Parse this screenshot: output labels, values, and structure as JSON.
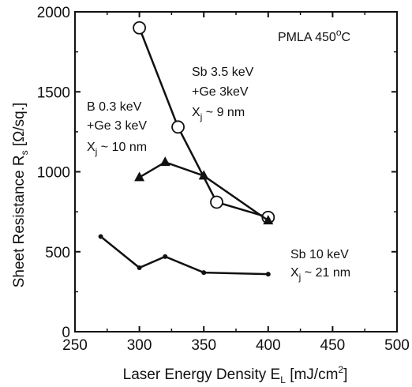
{
  "chart_data": {
    "type": "line",
    "xlabel": "Laser Energy Density E",
    "xlabel_sub": "L",
    "xlabel_unit": "[mJ/cm",
    "xlabel_sup": "2",
    "xlabel_end": "]",
    "ylabel": "Sheet Resistance R",
    "ylabel_sub": "s",
    "ylabel_unit": "[Ω/sq.]",
    "xlim": [
      250,
      500
    ],
    "ylim": [
      0,
      2000
    ],
    "x_ticks": [
      250,
      300,
      350,
      400,
      450,
      500
    ],
    "y_ticks": [
      0,
      500,
      1000,
      1500,
      2000
    ],
    "x_tick_labels": [
      "250",
      "300",
      "350",
      "400",
      "450",
      "500"
    ],
    "y_tick_labels": [
      "0",
      "500",
      "1000",
      "1500",
      "2000"
    ],
    "grid": false,
    "series": [
      {
        "marker": "open-circle",
        "x": [
          300,
          330,
          360,
          400
        ],
        "y": [
          1900,
          1280,
          810,
          715
        ]
      },
      {
        "marker": "filled-triangle",
        "x": [
          300,
          320,
          350,
          400
        ],
        "y": [
          965,
          1060,
          975,
          695
        ]
      },
      {
        "marker": "small-dot",
        "x": [
          270,
          300,
          320,
          350,
          400
        ],
        "y": [
          595,
          400,
          470,
          370,
          360
        ]
      }
    ],
    "annotations": {
      "pmla": {
        "pre": "PMLA 450",
        "sup": "o",
        "post": "C"
      },
      "sb35": {
        "line1": "Sb 3.5 keV",
        "line2": "+Ge 3keV",
        "line3_pre": "X",
        "line3_sub": "j",
        "line3_post": " ~ 9 nm"
      },
      "b03": {
        "line1": "B 0.3 keV",
        "line2": "+Ge 3 keV",
        "line3_pre": "X",
        "line3_sub": "j",
        "line3_post": " ~ 10 nm"
      },
      "sb10": {
        "line1": "Sb 10 keV",
        "line2_pre": "X",
        "line2_sub": "j",
        "line2_post": " ~ 21 nm"
      }
    }
  }
}
